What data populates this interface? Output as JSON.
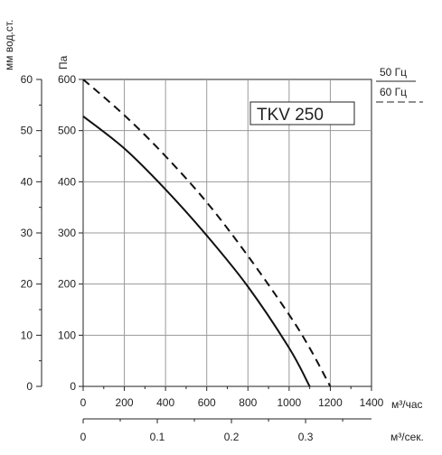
{
  "chart_data": {
    "type": "line",
    "title": "TKV 250",
    "xlabel": "м³/час",
    "ylabel": "Па",
    "ylabel_secondary": "мм вод.ст.",
    "xlabel_secondary": "м³/сек.",
    "xlim": [
      0,
      1400
    ],
    "ylim": [
      0,
      600
    ],
    "x_ticks": [
      0,
      200,
      400,
      600,
      800,
      1000,
      1200,
      1400
    ],
    "y_ticks": [
      0,
      100,
      200,
      300,
      400,
      500,
      600
    ],
    "y2_ticks": [
      0,
      10,
      20,
      30,
      40,
      50,
      60
    ],
    "x2_ticks": [
      0,
      0.1,
      0.2,
      0.3
    ],
    "x2_labels": [
      "0",
      "0.1",
      "0.2",
      "0.3"
    ],
    "grid": true,
    "legend_position": "top-right",
    "series": [
      {
        "name": "50 Гц",
        "style": "solid",
        "x": [
          0,
          200,
          400,
          600,
          800,
          1000,
          1100
        ],
        "y": [
          528,
          465,
          385,
          295,
          195,
          75,
          0
        ]
      },
      {
        "name": "60 Гц",
        "style": "dashed",
        "x": [
          0,
          200,
          400,
          600,
          800,
          1000,
          1100,
          1200
        ],
        "y": [
          600,
          530,
          450,
          360,
          255,
          140,
          75,
          0
        ]
      }
    ]
  }
}
